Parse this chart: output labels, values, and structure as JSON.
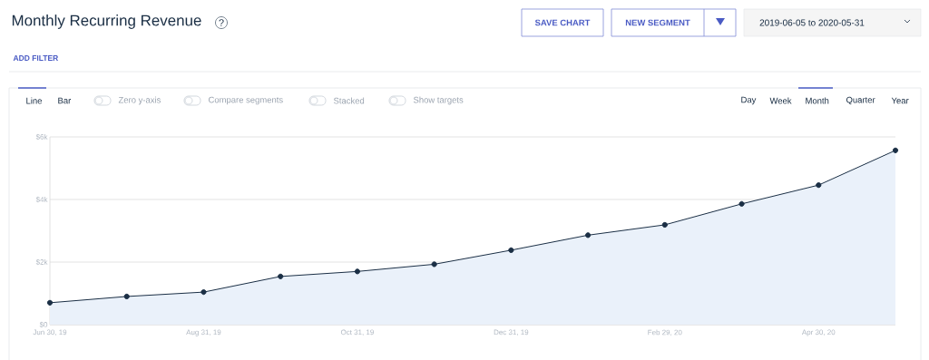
{
  "chart_data": {
    "type": "area",
    "title": "Monthly Recurring Revenue",
    "categories": [
      "Jun 30, 19",
      null,
      "Aug 31, 19",
      null,
      "Oct 31, 19",
      null,
      "Dec 31, 19",
      null,
      "Feb 29, 20",
      null,
      "Apr 30, 20",
      null
    ],
    "series": [
      {
        "color": "#1b2f45",
        "values": [
          700,
          900,
          1040,
          1540,
          1700,
          1930,
          2380,
          2860,
          3190,
          3860,
          4460,
          5570
        ]
      }
    ],
    "ylim": [
      0,
      6000
    ],
    "yticks": [
      {
        "value": 0,
        "label": "$0"
      },
      {
        "value": 2000,
        "label": "$2k"
      },
      {
        "value": 4000,
        "label": "$4k"
      },
      {
        "value": 6000,
        "label": "$6k"
      }
    ],
    "grid": "y",
    "marker": "circle",
    "line_style": "solid",
    "annotations": [
      "?",
      "SAVE CHART",
      "NEW SEGMENT",
      "2019-06-05 to 2020-05-31",
      "ADD FILTER",
      "Line",
      "Bar",
      "Zero y-axis",
      "Compare segments",
      "Stacked",
      "Show targets",
      "Day",
      "Week",
      "Month",
      "Quarter",
      "Year"
    ]
  }
}
